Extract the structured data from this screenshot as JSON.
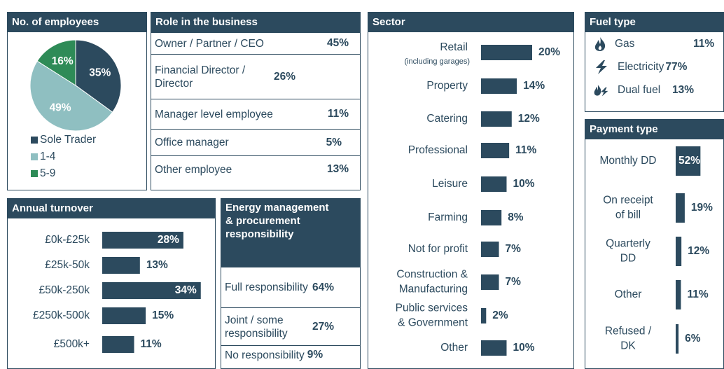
{
  "chart_data": [
    {
      "type": "pie",
      "title": "No. of employees",
      "categories": [
        "Sole Trader",
        "1-4",
        "5-9"
      ],
      "values": [
        35,
        49,
        16
      ],
      "value_labels": [
        "35%",
        "49%",
        "16%"
      ],
      "colors": [
        "#2c4a5e",
        "#8fbfc1",
        "#2e8b57"
      ]
    },
    {
      "type": "hbar",
      "title": "Annual turnover",
      "categories": [
        "£0k-£25k",
        "£25k-50k",
        "£50k-250k",
        "£250k-500k",
        "£500k+"
      ],
      "values": [
        28,
        13,
        34,
        15,
        11
      ],
      "value_labels": [
        "28%",
        "13%",
        "34%",
        "15%",
        "11%"
      ],
      "color": "#2c4a5e"
    },
    {
      "type": "hbar",
      "title": "Sector",
      "categories": [
        "Retail",
        "Property",
        "Catering",
        "Professional",
        "Leisure",
        "Farming",
        "Not for profit",
        "Construction &\nManufacturing",
        "Public services\n& Government",
        "Other"
      ],
      "category_notes": [
        "(including garages)",
        null,
        null,
        null,
        null,
        null,
        null,
        null,
        null,
        null
      ],
      "values": [
        20,
        14,
        12,
        11,
        10,
        8,
        7,
        7,
        2,
        10
      ],
      "value_labels": [
        "20%",
        "14%",
        "12%",
        "11%",
        "10%",
        "8%",
        "7%",
        "7%",
        "2%",
        "10%"
      ],
      "color": "#2c4a5e"
    },
    {
      "type": "hbar",
      "title": "Payment type",
      "categories": [
        "Monthly DD",
        "On receipt\nof bill",
        "Quarterly\nDD",
        "Other",
        "Refused /\nDK"
      ],
      "values": [
        52,
        19,
        12,
        11,
        6
      ],
      "value_labels": [
        "52%",
        "19%",
        "12%",
        "11%",
        "6%"
      ],
      "color": "#2c4a5e"
    }
  ],
  "tables": [
    {
      "title": "Role in the business",
      "rows": [
        [
          "Owner / Partner / CEO",
          "45%"
        ],
        [
          "Financial Director / Director",
          "26%"
        ],
        [
          "Manager level employee",
          "11%"
        ],
        [
          "Office manager",
          "5%"
        ],
        [
          "Other employee",
          "13%"
        ]
      ]
    },
    {
      "title": "Energy management & procurement responsibility",
      "rows": [
        [
          "Full responsibility",
          "64%"
        ],
        [
          "Joint / some responsibility",
          "27%"
        ],
        [
          "No responsibility",
          "9%"
        ]
      ]
    },
    {
      "title": "Fuel type",
      "rows": [
        [
          "Gas",
          "11%"
        ],
        [
          "Electricity",
          "77%"
        ],
        [
          "Dual fuel",
          "13%"
        ]
      ]
    }
  ]
}
